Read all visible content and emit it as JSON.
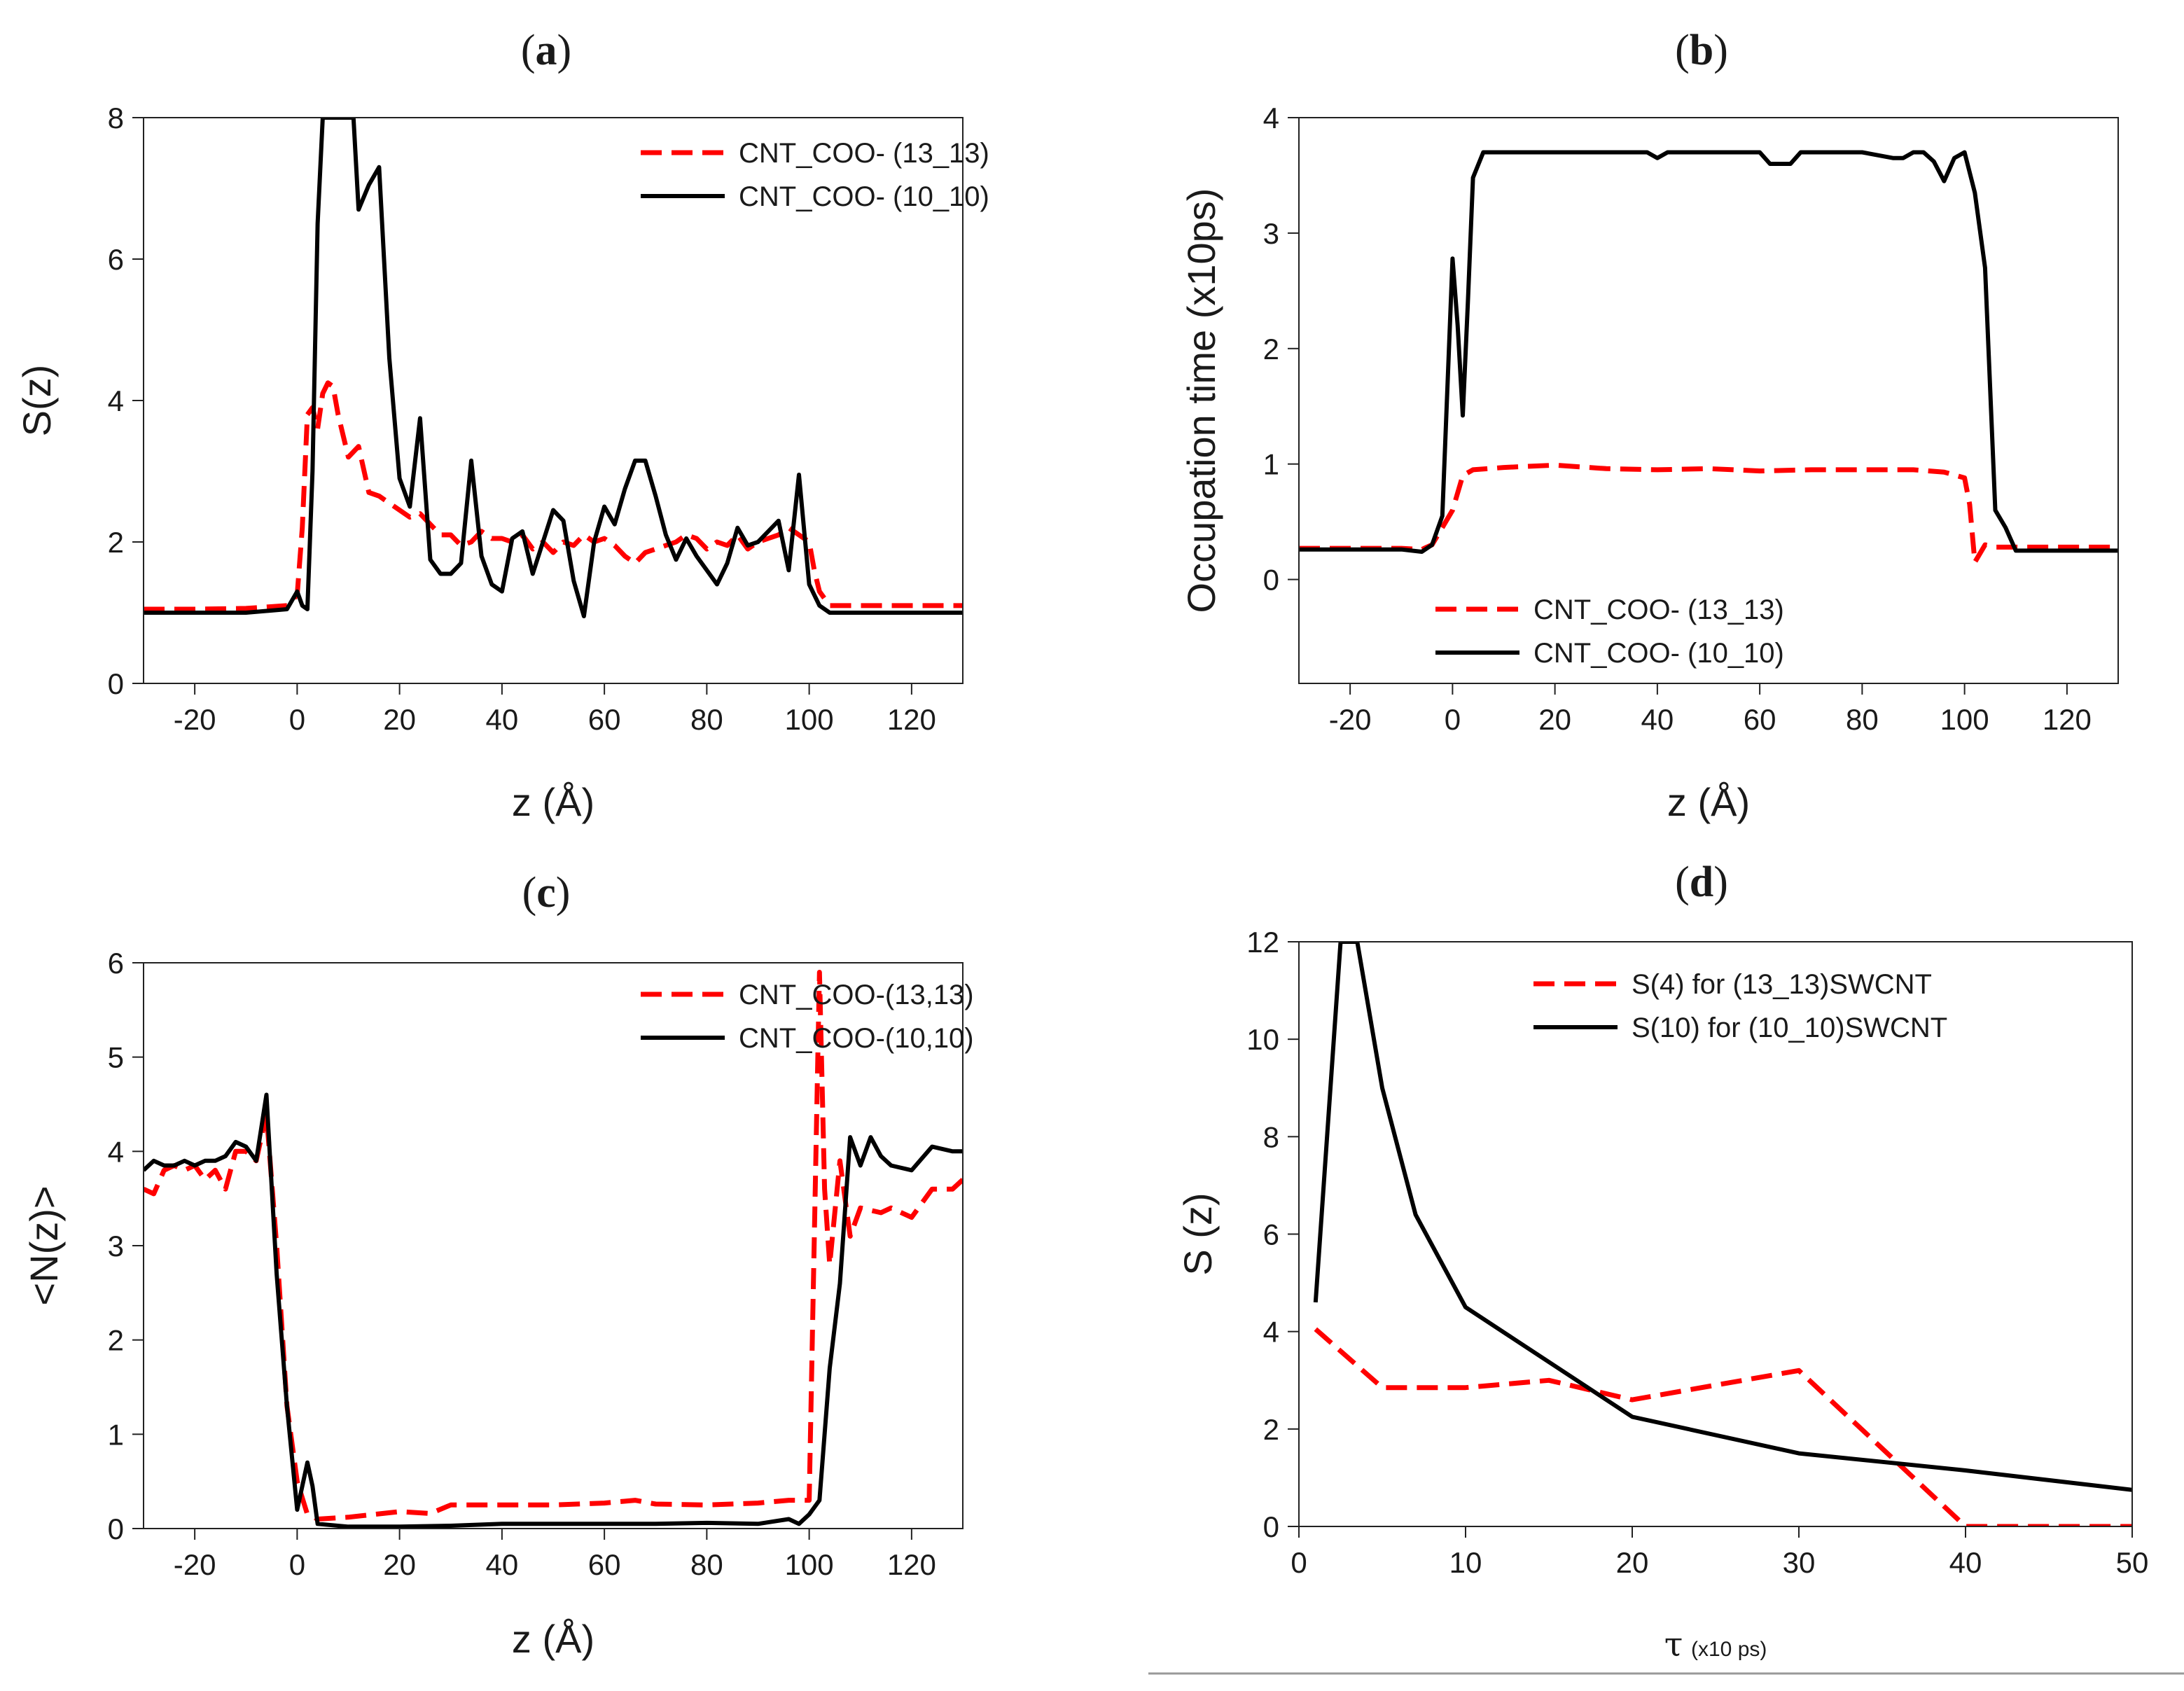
{
  "chart_data": [
    {
      "id": "a",
      "panel_label": "a",
      "type": "line",
      "title": "",
      "xlabel": "z (Å)",
      "ylabel": "S(z)",
      "xlim": [
        -30,
        130
      ],
      "ylim": [
        0,
        8
      ],
      "xticks": [
        -20,
        0,
        20,
        40,
        60,
        80,
        100,
        120
      ],
      "yticks": [
        0,
        2,
        4,
        6,
        8
      ],
      "legend": "top-right",
      "grid": false,
      "series": [
        {
          "name": "CNT_COO- (13_13)",
          "color": "#ff0000",
          "dash": true,
          "x": [
            -30,
            -20,
            -10,
            -2,
            0,
            1,
            2,
            3,
            4,
            5,
            6,
            7,
            8,
            10,
            12,
            14,
            16,
            18,
            20,
            22,
            24,
            26,
            28,
            30,
            32,
            34,
            36,
            38,
            40,
            42,
            44,
            46,
            48,
            50,
            52,
            54,
            56,
            58,
            60,
            62,
            64,
            66,
            68,
            70,
            72,
            74,
            76,
            78,
            80,
            82,
            84,
            86,
            88,
            90,
            92,
            94,
            96,
            98,
            100,
            101,
            102,
            104,
            106,
            110,
            120,
            130
          ],
          "values": [
            1.05,
            1.05,
            1.06,
            1.1,
            1.25,
            2.2,
            3.8,
            3.9,
            3.6,
            4.1,
            4.25,
            4.2,
            3.8,
            3.2,
            3.35,
            2.7,
            2.65,
            2.55,
            2.45,
            2.35,
            2.4,
            2.25,
            2.1,
            2.1,
            1.95,
            2.0,
            2.15,
            2.05,
            2.05,
            2.0,
            2.1,
            1.9,
            2.0,
            1.85,
            2.0,
            1.95,
            2.1,
            2.0,
            2.05,
            1.95,
            1.8,
            1.7,
            1.85,
            1.9,
            1.95,
            2.0,
            2.1,
            2.05,
            1.9,
            2.0,
            1.95,
            2.1,
            1.9,
            2.0,
            2.05,
            2.1,
            2.2,
            2.1,
            2.0,
            1.6,
            1.3,
            1.1,
            1.1,
            1.1,
            1.1,
            1.1
          ]
        },
        {
          "name": "CNT_COO- (10_10)",
          "color": "#000000",
          "dash": false,
          "x": [
            -30,
            -20,
            -10,
            -2,
            0,
            1,
            2,
            3,
            4,
            5,
            6,
            7,
            8,
            9,
            10,
            11,
            12,
            14,
            16,
            18,
            20,
            22,
            24,
            26,
            28,
            30,
            32,
            34,
            36,
            38,
            40,
            42,
            44,
            46,
            48,
            50,
            52,
            54,
            56,
            58,
            60,
            62,
            64,
            66,
            68,
            70,
            72,
            74,
            76,
            78,
            80,
            82,
            84,
            86,
            88,
            90,
            92,
            94,
            96,
            98,
            100,
            102,
            104,
            106,
            110,
            120,
            130
          ],
          "values": [
            1.0,
            1.0,
            1.0,
            1.05,
            1.3,
            1.1,
            1.05,
            3.0,
            6.5,
            8.0,
            8.0,
            8.0,
            8.0,
            8.0,
            8.0,
            8.0,
            6.7,
            7.05,
            7.3,
            4.6,
            2.9,
            2.5,
            3.75,
            1.75,
            1.55,
            1.55,
            1.7,
            3.15,
            1.8,
            1.4,
            1.3,
            2.05,
            2.15,
            1.55,
            2.0,
            2.45,
            2.3,
            1.45,
            0.95,
            2.0,
            2.5,
            2.25,
            2.75,
            3.15,
            3.15,
            2.65,
            2.1,
            1.75,
            2.05,
            1.8,
            1.6,
            1.4,
            1.7,
            2.2,
            1.95,
            2.0,
            2.15,
            2.3,
            1.6,
            2.95,
            1.4,
            1.1,
            1.0,
            1.0,
            1.0,
            1.0,
            1.0
          ]
        }
      ]
    },
    {
      "id": "b",
      "panel_label": "b",
      "type": "line",
      "title": "",
      "xlabel": "z (Å)",
      "ylabel": "Occupation time (x10ps)",
      "xlim": [
        -30,
        130
      ],
      "ylim": [
        -0.9,
        4
      ],
      "xticks": [
        -20,
        0,
        20,
        40,
        60,
        80,
        100,
        120
      ],
      "yticks": [
        0,
        1,
        2,
        3,
        4
      ],
      "legend": "bottom-right",
      "grid": false,
      "series": [
        {
          "name": "CNT_COO- (13_13)",
          "color": "#ff0000",
          "dash": true,
          "x": [
            -30,
            -20,
            -10,
            -6,
            -4,
            -2,
            0,
            2,
            4,
            10,
            20,
            30,
            40,
            50,
            60,
            70,
            80,
            90,
            96,
            100,
            101,
            102,
            104,
            106,
            108,
            110,
            120,
            130
          ],
          "values": [
            0.27,
            0.27,
            0.27,
            0.26,
            0.3,
            0.45,
            0.6,
            0.9,
            0.95,
            0.97,
            0.99,
            0.96,
            0.95,
            0.96,
            0.94,
            0.95,
            0.95,
            0.95,
            0.93,
            0.88,
            0.65,
            0.15,
            0.3,
            0.28,
            0.28,
            0.28,
            0.28,
            0.28
          ]
        },
        {
          "name": "CNT_COO- (10_10)",
          "color": "#000000",
          "dash": false,
          "x": [
            -30,
            -20,
            -10,
            -6,
            -4,
            -2,
            0,
            1,
            2,
            3,
            4,
            6,
            10,
            20,
            30,
            38,
            40,
            42,
            50,
            60,
            62,
            66,
            68,
            70,
            80,
            86,
            88,
            90,
            92,
            94,
            96,
            98,
            100,
            102,
            104,
            106,
            108,
            110,
            120,
            130
          ],
          "values": [
            0.26,
            0.26,
            0.26,
            0.24,
            0.3,
            0.55,
            2.78,
            2.2,
            1.42,
            2.4,
            3.48,
            3.7,
            3.7,
            3.7,
            3.7,
            3.7,
            3.65,
            3.7,
            3.7,
            3.7,
            3.6,
            3.6,
            3.7,
            3.7,
            3.7,
            3.65,
            3.65,
            3.7,
            3.7,
            3.62,
            3.45,
            3.65,
            3.7,
            3.35,
            2.7,
            0.6,
            0.45,
            0.25,
            0.25,
            0.25
          ]
        }
      ]
    },
    {
      "id": "c",
      "panel_label": "c",
      "type": "line",
      "title": "",
      "xlabel": "z (Å)",
      "ylabel": "<N(z)>",
      "xlim": [
        -30,
        130
      ],
      "ylim": [
        0,
        6
      ],
      "xticks": [
        -20,
        0,
        20,
        40,
        60,
        80,
        100,
        120
      ],
      "yticks": [
        0,
        1,
        2,
        3,
        4,
        5,
        6
      ],
      "legend": "top-right",
      "grid": false,
      "series": [
        {
          "name": "CNT_COO-(13,13)",
          "color": "#ff0000",
          "dash": true,
          "x": [
            -30,
            -28,
            -26,
            -24,
            -22,
            -20,
            -18,
            -16,
            -14,
            -12,
            -10,
            -8,
            -6,
            -4,
            -2,
            0,
            2,
            4,
            10,
            20,
            26,
            30,
            40,
            50,
            60,
            66,
            70,
            80,
            90,
            96,
            100,
            102,
            103,
            104,
            106,
            108,
            110,
            114,
            116,
            120,
            124,
            128,
            130
          ],
          "values": [
            3.6,
            3.55,
            3.8,
            3.85,
            3.8,
            3.85,
            3.7,
            3.8,
            3.6,
            4.0,
            4.0,
            3.9,
            4.4,
            3.0,
            1.3,
            0.5,
            0.15,
            0.1,
            0.12,
            0.18,
            0.16,
            0.25,
            0.25,
            0.25,
            0.27,
            0.3,
            0.26,
            0.25,
            0.27,
            0.3,
            0.3,
            5.9,
            3.6,
            2.8,
            3.9,
            3.1,
            3.4,
            3.35,
            3.4,
            3.3,
            3.6,
            3.6,
            3.7
          ]
        },
        {
          "name": "CNT_COO-(10,10)",
          "color": "#000000",
          "dash": false,
          "x": [
            -30,
            -28,
            -26,
            -24,
            -22,
            -20,
            -18,
            -16,
            -14,
            -12,
            -10,
            -8,
            -6,
            -4,
            -2,
            0,
            1,
            2,
            3,
            4,
            10,
            20,
            30,
            40,
            50,
            60,
            70,
            80,
            90,
            96,
            98,
            100,
            102,
            104,
            106,
            108,
            110,
            112,
            114,
            116,
            120,
            124,
            128,
            130
          ],
          "values": [
            3.8,
            3.9,
            3.85,
            3.85,
            3.9,
            3.85,
            3.9,
            3.9,
            3.95,
            4.1,
            4.05,
            3.9,
            4.6,
            2.7,
            1.3,
            0.2,
            0.45,
            0.7,
            0.45,
            0.05,
            0.02,
            0.02,
            0.03,
            0.05,
            0.05,
            0.05,
            0.05,
            0.06,
            0.05,
            0.1,
            0.05,
            0.15,
            0.3,
            1.7,
            2.6,
            4.15,
            3.85,
            4.15,
            3.95,
            3.85,
            3.8,
            4.05,
            4.0,
            4.0
          ]
        }
      ]
    },
    {
      "id": "d",
      "panel_label": "d",
      "type": "line",
      "title": "",
      "xlabel": "τ",
      "xlabel_sub": "(x10 ps)",
      "ylabel": "S (z)",
      "xlim": [
        0,
        50
      ],
      "ylim": [
        0,
        12
      ],
      "xticks": [
        0,
        10,
        20,
        30,
        40,
        50
      ],
      "yticks": [
        0,
        2,
        4,
        6,
        8,
        10,
        12
      ],
      "legend": "top-right",
      "grid": false,
      "series": [
        {
          "name": "S(4) for (13_13)SWCNT",
          "color": "#ff0000",
          "dash": true,
          "x": [
            1,
            5,
            10,
            15,
            20,
            30,
            40,
            50
          ],
          "values": [
            4.05,
            2.85,
            2.85,
            3.0,
            2.6,
            3.2,
            0,
            0
          ]
        },
        {
          "name": "S(10) for (10_10)SWCNT",
          "color": "#000000",
          "dash": false,
          "x": [
            1,
            2.5,
            3.5,
            5,
            7,
            10,
            20,
            30,
            40,
            50
          ],
          "values": [
            4.6,
            12,
            12,
            9.0,
            6.4,
            4.5,
            2.25,
            1.5,
            1.15,
            0.75
          ]
        }
      ]
    }
  ]
}
